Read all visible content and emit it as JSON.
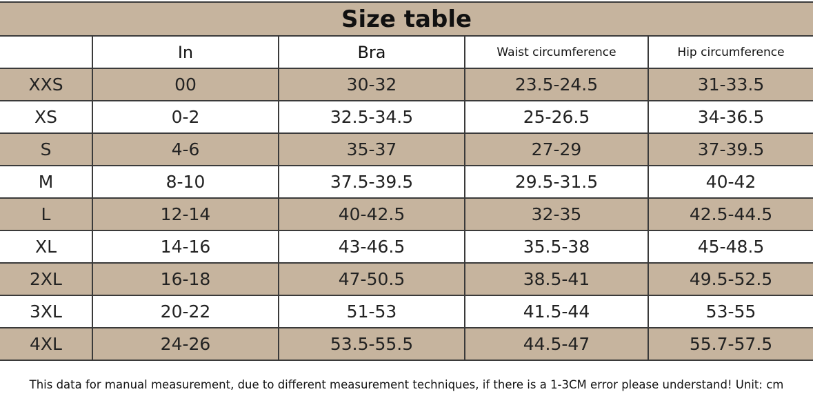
{
  "title": "Size table",
  "colors": {
    "tan": "#c6b49e",
    "white": "#ffffff",
    "grid": "#3a3a3a"
  },
  "headers": [
    "",
    "In",
    "Bra",
    "Waist circumference",
    "Hip circumference"
  ],
  "rows": [
    [
      "XXS",
      "00",
      "30-32",
      "23.5-24.5",
      "31-33.5"
    ],
    [
      "XS",
      "0-2",
      "32.5-34.5",
      "25-26.5",
      "34-36.5"
    ],
    [
      "S",
      "4-6",
      "35-37",
      "27-29",
      "37-39.5"
    ],
    [
      "M",
      "8-10",
      "37.5-39.5",
      "29.5-31.5",
      "40-42"
    ],
    [
      "L",
      "12-14",
      "40-42.5",
      "32-35",
      "42.5-44.5"
    ],
    [
      "XL",
      "14-16",
      "43-46.5",
      "35.5-38",
      "45-48.5"
    ],
    [
      "2XL",
      "16-18",
      "47-50.5",
      "38.5-41",
      "49.5-52.5"
    ],
    [
      "3XL",
      "20-22",
      "51-53",
      "41.5-44",
      "53-55"
    ],
    [
      "4XL",
      "24-26",
      "53.5-55.5",
      "44.5-47",
      "55.7-57.5"
    ]
  ],
  "footer": "This data for manual measurement, due to different measurement techniques, if there is a 1-3CM error please understand! Unit: cm"
}
